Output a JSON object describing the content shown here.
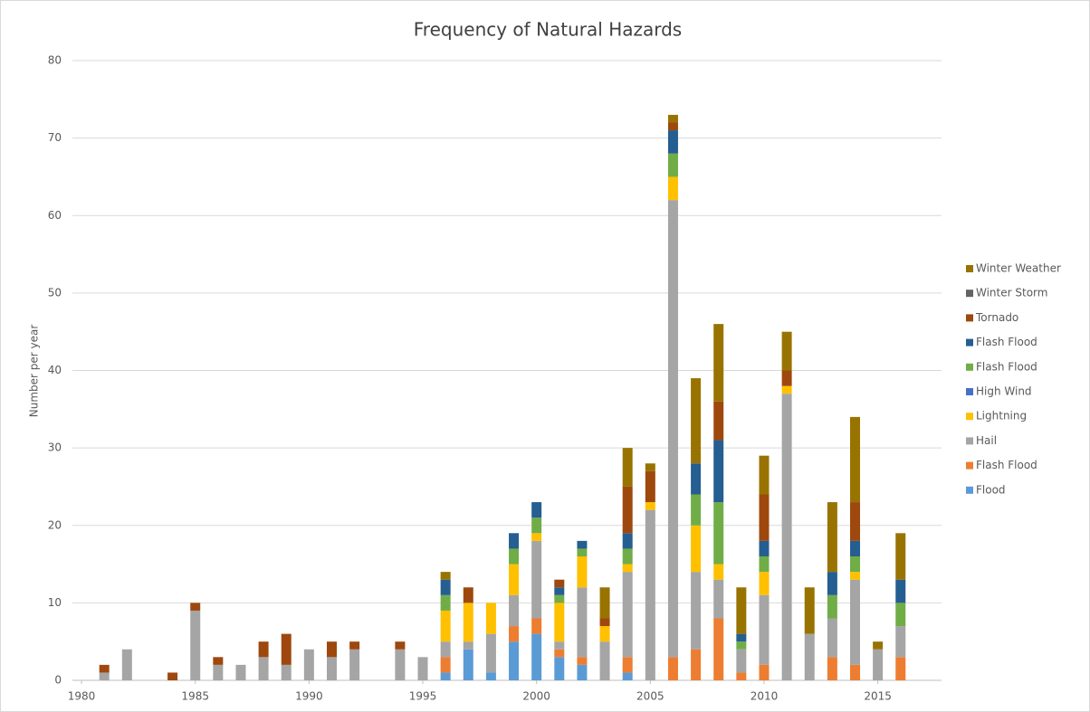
{
  "chart_data": {
    "type": "stacked_bar",
    "title": "Frequency of Natural Hazards",
    "y_label": "Number per year",
    "x": [
      1980,
      1981,
      1982,
      1983,
      1984,
      1985,
      1986,
      1987,
      1988,
      1989,
      1990,
      1991,
      1992,
      1993,
      1994,
      1995,
      1996,
      1997,
      1998,
      1999,
      2000,
      2001,
      2002,
      2003,
      2004,
      2005,
      2006,
      2007,
      2008,
      2009,
      2010,
      2011,
      2012,
      2013,
      2014,
      2015,
      2016
    ],
    "xlim": [
      1979.6,
      2017.8
    ],
    "xticks": [
      1980,
      1985,
      1990,
      1995,
      2000,
      2005,
      2010,
      2015
    ],
    "ylim": [
      0,
      80
    ],
    "yticks": [
      0,
      10,
      20,
      30,
      40,
      50,
      60,
      70,
      80
    ],
    "grid": true,
    "legend": "right",
    "series": [
      {
        "name": "Flood",
        "color": "#5b9bd5",
        "values": [
          0,
          0,
          0,
          0,
          0,
          0,
          0,
          0,
          0,
          0,
          0,
          0,
          0,
          0,
          0,
          0,
          1,
          4,
          1,
          5,
          6,
          3,
          2,
          0,
          1,
          0,
          0,
          0,
          0,
          0,
          0,
          0,
          0,
          0,
          0,
          0,
          0
        ]
      },
      {
        "name": "Flash Flood",
        "color": "#ed7d31",
        "values": [
          0,
          0,
          0,
          0,
          0,
          0,
          0,
          0,
          0,
          0,
          0,
          0,
          0,
          0,
          0,
          0,
          2,
          0,
          0,
          2,
          2,
          1,
          1,
          0,
          2,
          0,
          3,
          4,
          8,
          1,
          2,
          0,
          0,
          3,
          2,
          0,
          3
        ]
      },
      {
        "name": "Hail",
        "color": "#a5a5a5",
        "values": [
          0,
          1,
          4,
          0,
          0,
          9,
          2,
          2,
          3,
          2,
          4,
          3,
          4,
          0,
          4,
          3,
          2,
          1,
          5,
          4,
          10,
          1,
          9,
          5,
          11,
          22,
          59,
          10,
          5,
          3,
          9,
          37,
          6,
          5,
          11,
          4,
          4
        ]
      },
      {
        "name": "Lightning",
        "color": "#ffc000",
        "values": [
          0,
          0,
          0,
          0,
          0,
          0,
          0,
          0,
          0,
          0,
          0,
          0,
          0,
          0,
          0,
          0,
          4,
          5,
          4,
          4,
          1,
          5,
          4,
          2,
          1,
          1,
          3,
          6,
          2,
          0,
          3,
          1,
          0,
          0,
          1,
          0,
          0
        ]
      },
      {
        "name": "High Wind",
        "color": "#4472c4",
        "values": [
          0,
          0,
          0,
          0,
          0,
          0,
          0,
          0,
          0,
          0,
          0,
          0,
          0,
          0,
          0,
          0,
          0,
          0,
          0,
          0,
          0,
          0,
          0,
          0,
          0,
          0,
          0,
          0,
          0,
          0,
          0,
          0,
          0,
          0,
          0,
          0,
          0
        ]
      },
      {
        "name": "Flash Flood",
        "color": "#70ad47",
        "values": [
          0,
          0,
          0,
          0,
          0,
          0,
          0,
          0,
          0,
          0,
          0,
          0,
          0,
          0,
          0,
          0,
          2,
          0,
          0,
          2,
          2,
          1,
          1,
          0,
          2,
          0,
          3,
          4,
          8,
          1,
          2,
          0,
          0,
          3,
          2,
          0,
          3
        ]
      },
      {
        "name": "Flash Flood",
        "color": "#255e91",
        "values": [
          0,
          0,
          0,
          0,
          0,
          0,
          0,
          0,
          0,
          0,
          0,
          0,
          0,
          0,
          0,
          0,
          2,
          0,
          0,
          2,
          2,
          1,
          1,
          0,
          2,
          0,
          3,
          4,
          8,
          1,
          2,
          0,
          0,
          3,
          2,
          0,
          3
        ]
      },
      {
        "name": "Tornado",
        "color": "#9e480e",
        "values": [
          0,
          1,
          0,
          0,
          1,
          1,
          1,
          0,
          2,
          4,
          0,
          2,
          1,
          0,
          1,
          0,
          0,
          2,
          0,
          0,
          0,
          1,
          0,
          1,
          6,
          4,
          1,
          0,
          5,
          0,
          6,
          2,
          0,
          0,
          5,
          0,
          0
        ]
      },
      {
        "name": "Winter Storm",
        "color": "#636363",
        "values": [
          0,
          0,
          0,
          0,
          0,
          0,
          0,
          0,
          0,
          0,
          0,
          0,
          0,
          0,
          0,
          0,
          0,
          0,
          0,
          0,
          0,
          0,
          0,
          0,
          0,
          0,
          0,
          0,
          0,
          0,
          0,
          0,
          0,
          0,
          0,
          0,
          0
        ]
      },
      {
        "name": "Winter Weather",
        "color": "#997300",
        "values": [
          0,
          0,
          0,
          0,
          0,
          0,
          0,
          0,
          0,
          0,
          0,
          0,
          0,
          0,
          0,
          0,
          1,
          0,
          0,
          0,
          0,
          0,
          0,
          4,
          5,
          1,
          1,
          11,
          10,
          6,
          5,
          5,
          6,
          9,
          11,
          1,
          6
        ]
      }
    ]
  }
}
